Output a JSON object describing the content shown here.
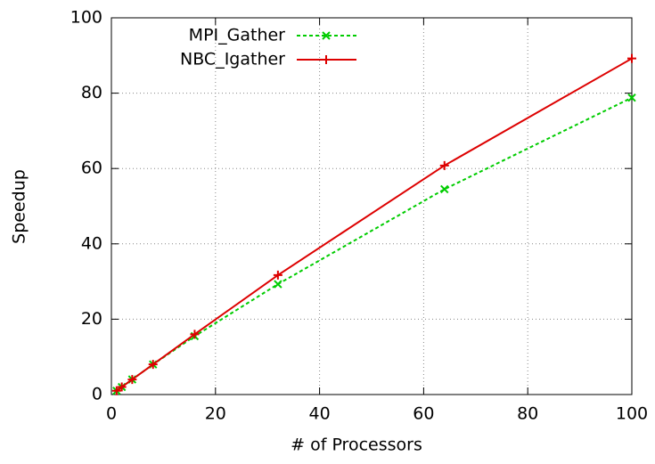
{
  "chart_data": {
    "type": "line",
    "xlabel": "# of Processors",
    "ylabel": "Speedup",
    "x": [
      1,
      2,
      4,
      8,
      16,
      32,
      64,
      100
    ],
    "series": [
      {
        "name": "MPI_Gather",
        "color": "#00cc00",
        "dash": true,
        "marker": "x",
        "values": [
          1,
          2,
          4,
          8,
          15.5,
          29.3,
          54.5,
          78.8
        ]
      },
      {
        "name": "NBC_Igather",
        "color": "#dd0000",
        "dash": false,
        "marker": "+",
        "values": [
          1,
          2,
          4,
          8,
          16,
          31.7,
          60.8,
          89.2
        ]
      }
    ],
    "xlim": [
      0,
      100
    ],
    "ylim": [
      0,
      100
    ],
    "xticks": [
      0,
      20,
      40,
      60,
      80,
      100
    ],
    "yticks": [
      0,
      20,
      40,
      60,
      80,
      100
    ],
    "grid": true,
    "legend": "top-left"
  }
}
